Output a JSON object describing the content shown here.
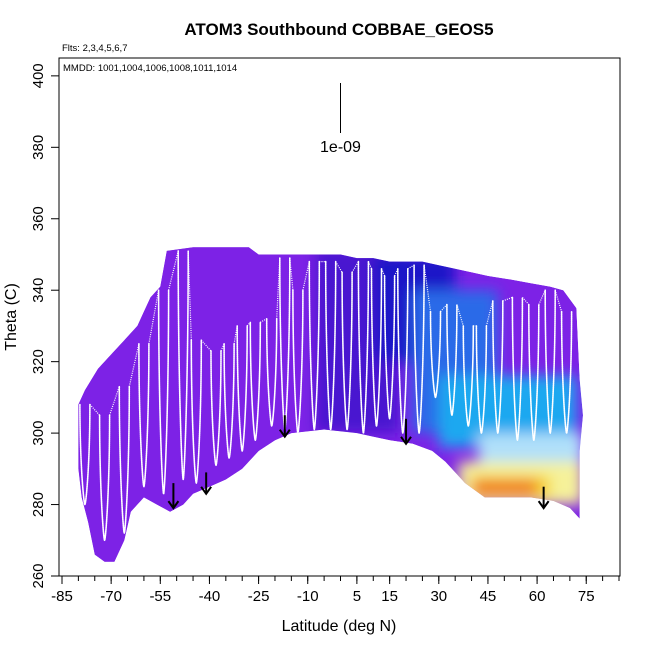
{
  "chart_data": {
    "type": "heatmap",
    "title": "ATOM3 Southbound COBBAE_GEOS5",
    "notes": {
      "flights": "Flts: 2,3,4,5,6,7",
      "dates": "MMDD: 1001,1004,1006,1008,1011,1014"
    },
    "xlabel": "Latitude (deg N)",
    "ylabel": "Theta (C)",
    "xlim": [
      -85,
      85
    ],
    "ylim": [
      260,
      405
    ],
    "x_ticks": [
      -85,
      -70,
      -55,
      -40,
      -25,
      -10,
      5,
      15,
      30,
      45,
      60,
      75
    ],
    "x_minor_step": 5,
    "y_ticks": [
      260,
      280,
      300,
      320,
      340,
      360,
      380,
      400
    ],
    "scale_bar": {
      "x": 0,
      "y_top": 398,
      "y_bottom": 384,
      "label": "1e-09"
    },
    "colors": {
      "purple": "#8a2be2",
      "violet": "#7d22e6",
      "indigo": "#4a18d0",
      "blue": "#1a14c8",
      "mid_blue": "#2a6ae8",
      "light_blue": "#1ea8f0",
      "pale_blue": "#b0e0fa",
      "pale_yellow": "#f6f29a",
      "yellow": "#f6d21a",
      "orange": "#f07c0a",
      "dark_orange": "#e45a08",
      "flight_track": "#ffffff",
      "arrow": "#000000"
    },
    "field_outline": {
      "upper": [
        [
          -80,
          308
        ],
        [
          -78,
          312
        ],
        [
          -74,
          318
        ],
        [
          -70,
          322
        ],
        [
          -66,
          326
        ],
        [
          -62,
          330
        ],
        [
          -60,
          334
        ],
        [
          -58,
          338
        ],
        [
          -55,
          341
        ],
        [
          -53,
          351
        ],
        [
          -45,
          352
        ],
        [
          -35,
          352
        ],
        [
          -28,
          352
        ],
        [
          -25,
          350
        ],
        [
          -20,
          350
        ],
        [
          -10,
          350
        ],
        [
          0,
          350
        ],
        [
          5,
          349
        ],
        [
          10,
          349
        ],
        [
          15,
          348
        ],
        [
          25,
          348
        ],
        [
          30,
          347
        ],
        [
          35,
          346
        ],
        [
          40,
          345
        ],
        [
          45,
          344
        ],
        [
          52,
          343
        ],
        [
          58,
          342
        ],
        [
          64,
          341
        ],
        [
          68,
          340
        ],
        [
          72,
          335
        ],
        [
          73,
          315
        ],
        [
          74,
          305
        ],
        [
          73,
          295
        ],
        [
          73,
          280
        ]
      ],
      "lower": [
        [
          73,
          276
        ],
        [
          70,
          279
        ],
        [
          65,
          281
        ],
        [
          58,
          282
        ],
        [
          50,
          282
        ],
        [
          44,
          282
        ],
        [
          38,
          286
        ],
        [
          32,
          292
        ],
        [
          28,
          295
        ],
        [
          22,
          297
        ],
        [
          15,
          298
        ],
        [
          10,
          299
        ],
        [
          5,
          300
        ],
        [
          -5,
          301
        ],
        [
          -15,
          300
        ],
        [
          -20,
          298
        ],
        [
          -25,
          295
        ],
        [
          -30,
          290
        ],
        [
          -35,
          287
        ],
        [
          -40,
          285
        ],
        [
          -45,
          283
        ],
        [
          -48,
          280
        ],
        [
          -52,
          278
        ],
        [
          -56,
          280
        ],
        [
          -60,
          282
        ],
        [
          -64,
          278
        ],
        [
          -66,
          270
        ],
        [
          -69,
          264
        ],
        [
          -72,
          264
        ],
        [
          -75,
          266
        ],
        [
          -77,
          275
        ],
        [
          -79,
          282
        ],
        [
          -80,
          290
        ]
      ]
    },
    "regions": [
      {
        "x_range": [
          -85,
          0
        ],
        "color": "violet"
      },
      {
        "x_range": [
          -8,
          18
        ],
        "theta_range": [
          300,
          352
        ],
        "color": "indigo"
      },
      {
        "x_range": [
          10,
          35
        ],
        "theta_range": [
          320,
          350
        ],
        "color": "blue"
      },
      {
        "x_range": [
          22,
          48
        ],
        "theta_range": [
          300,
          340
        ],
        "color": "mid_blue"
      },
      {
        "x_range": [
          30,
          72
        ],
        "theta_range": [
          296,
          316
        ],
        "color": "light_blue"
      },
      {
        "x_range": [
          42,
          74
        ],
        "theta_range": [
          288,
          300
        ],
        "color": "pale_blue"
      },
      {
        "x_range": [
          36,
          74
        ],
        "theta_range": [
          280,
          292
        ],
        "color": "pale_yellow"
      },
      {
        "x_range": [
          40,
          64
        ],
        "theta_range": [
          282,
          288
        ],
        "color": "yellow"
      },
      {
        "x_range": [
          40,
          60
        ],
        "theta_range": [
          282,
          287
        ],
        "color": "orange"
      }
    ],
    "flight_profiles": [
      {
        "lat": -78,
        "theta_low": 280,
        "theta_high": 308
      },
      {
        "lat": -72,
        "theta_low": 270,
        "theta_high": 305
      },
      {
        "lat": -66,
        "theta_low": 272,
        "theta_high": 313
      },
      {
        "lat": -60,
        "theta_low": 285,
        "theta_high": 325
      },
      {
        "lat": -54,
        "theta_low": 283,
        "theta_high": 340
      },
      {
        "lat": -48,
        "theta_low": 287,
        "theta_high": 351
      },
      {
        "lat": -44,
        "theta_low": 286,
        "theta_high": 326
      },
      {
        "lat": -38,
        "theta_low": 291,
        "theta_high": 323
      },
      {
        "lat": -34,
        "theta_low": 293,
        "theta_high": 325
      },
      {
        "lat": -30,
        "theta_low": 295,
        "theta_high": 330
      },
      {
        "lat": -26,
        "theta_low": 298,
        "theta_high": 331
      },
      {
        "lat": -21,
        "theta_low": 302,
        "theta_high": 332
      },
      {
        "lat": -17,
        "theta_low": 301,
        "theta_high": 349
      },
      {
        "lat": -13,
        "theta_low": 300,
        "theta_high": 340
      },
      {
        "lat": -8,
        "theta_low": 301,
        "theta_high": 348
      },
      {
        "lat": -3,
        "theta_low": 301,
        "theta_high": 348
      },
      {
        "lat": 2,
        "theta_low": 301,
        "theta_high": 345
      },
      {
        "lat": 7,
        "theta_low": 300,
        "theta_high": 348
      },
      {
        "lat": 11,
        "theta_low": 302,
        "theta_high": 346
      },
      {
        "lat": 15,
        "theta_low": 304,
        "theta_high": 344
      },
      {
        "lat": 19,
        "theta_low": 300,
        "theta_high": 346
      },
      {
        "lat": 24,
        "theta_low": 300,
        "theta_high": 347
      },
      {
        "lat": 29,
        "theta_low": 310,
        "theta_high": 334
      },
      {
        "lat": 34,
        "theta_low": 305,
        "theta_high": 336
      },
      {
        "lat": 39,
        "theta_low": 302,
        "theta_high": 330
      },
      {
        "lat": 43,
        "theta_low": 300,
        "theta_high": 330
      },
      {
        "lat": 48,
        "theta_low": 300,
        "theta_high": 337
      },
      {
        "lat": 54,
        "theta_low": 298,
        "theta_high": 338
      },
      {
        "lat": 59,
        "theta_low": 298,
        "theta_high": 336
      },
      {
        "lat": 64,
        "theta_low": 300,
        "theta_high": 340
      },
      {
        "lat": 69,
        "theta_low": 300,
        "theta_high": 334
      }
    ],
    "arrows": [
      {
        "lat": -51,
        "theta_top": 286,
        "theta_bottom": 279
      },
      {
        "lat": -41,
        "theta_top": 289,
        "theta_bottom": 283
      },
      {
        "lat": -17,
        "theta_top": 305,
        "theta_bottom": 299
      },
      {
        "lat": 20,
        "theta_top": 304,
        "theta_bottom": 297
      },
      {
        "lat": 62,
        "theta_top": 285,
        "theta_bottom": 279
      }
    ]
  }
}
